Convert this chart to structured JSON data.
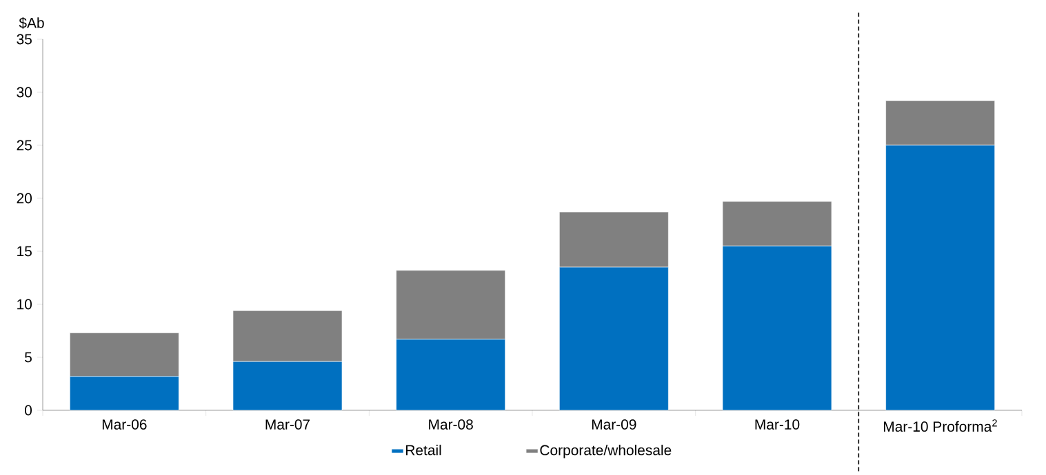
{
  "chart_data": {
    "type": "bar",
    "stacked": true,
    "ylabel": "$Ab",
    "categories": [
      "Mar-06",
      "Mar-07",
      "Mar-08",
      "Mar-09",
      "Mar-10",
      "Mar-10 Proforma$^{2}$"
    ],
    "series": [
      {
        "name": "Retail",
        "color": "#0070c0",
        "values": [
          3.2,
          4.6,
          6.7,
          13.5,
          15.5,
          25.0
        ]
      },
      {
        "name": "Corporate/wholesale",
        "color": "#808080",
        "values": [
          4.1,
          4.8,
          6.5,
          5.2,
          4.2,
          4.2
        ]
      }
    ],
    "ylim": [
      0,
      35
    ],
    "yticks": [
      0,
      5,
      10,
      15,
      20,
      25,
      30,
      35
    ],
    "legend": "bottom"
  }
}
